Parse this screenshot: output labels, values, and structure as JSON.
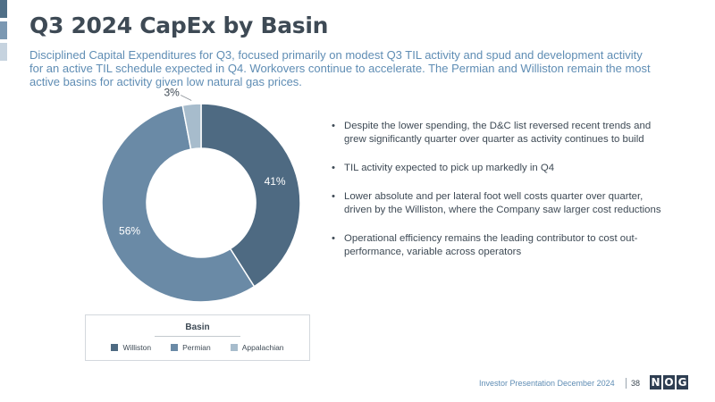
{
  "header": {
    "title": "Q3 2024 CapEx by Basin",
    "subtitle": "Disciplined Capital Expenditures for Q3, focused primarily on modest Q3 TIL activity and spud and development activity for an active TIL schedule expected in Q4.  Workovers continue to accelerate.  The Permian and Williston remain the most active basins for activity given low natural gas prices."
  },
  "chart_data": {
    "type": "pie",
    "donut": true,
    "legend_title": "Basin",
    "legend_position": "bottom",
    "categories": [
      "Williston",
      "Permian",
      "Appalachian"
    ],
    "values": [
      41,
      56,
      3
    ],
    "labels": [
      "41%",
      "56%",
      "3%"
    ],
    "colors": [
      "#4e6a82",
      "#6a8aa6",
      "#a7bccc"
    ]
  },
  "bullets": [
    "Despite the lower spending, the D&C list reversed recent trends and grew significantly quarter over quarter as activity continues to build",
    "TIL activity expected to pick up markedly in Q4",
    "Lower absolute and per lateral foot well costs quarter over quarter, driven by the Williston, where the Company saw larger cost reductions",
    "Operational efficiency remains the leading contributor to cost out-performance, variable across operators"
  ],
  "footer": {
    "text": "Investor Presentation December 2024",
    "page_number": "38",
    "logo_text": "NOG"
  }
}
